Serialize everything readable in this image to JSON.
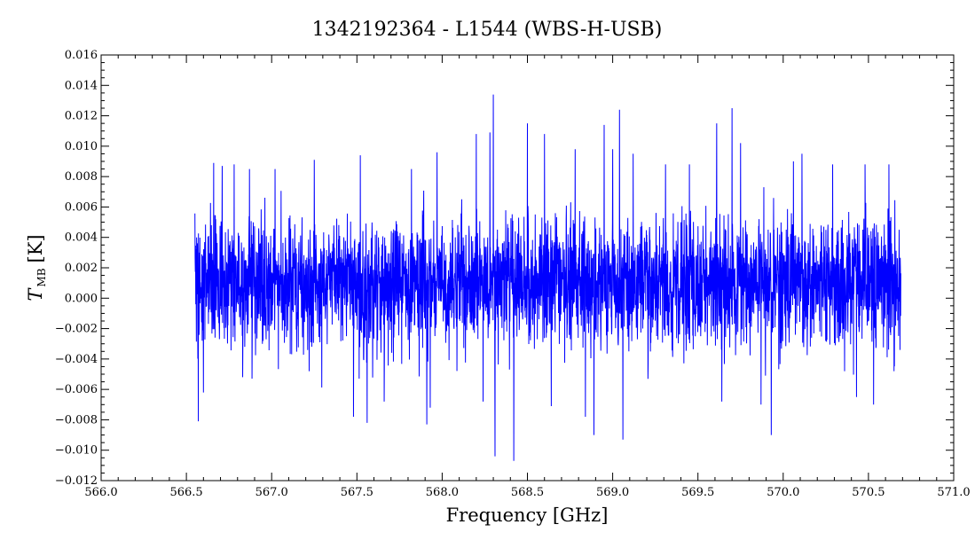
{
  "chart_data": {
    "type": "line",
    "title": "1342192364 - L1544 (WBS-H-USB)",
    "xlabel": "Frequency [GHz]",
    "ylabel_main": "T",
    "ylabel_sub": "MB",
    "ylabel_unit": "[K]",
    "xlim": [
      566.0,
      571.0
    ],
    "ylim": [
      -0.012,
      0.016
    ],
    "x_ticks": [
      "566.0",
      "566.5",
      "567.0",
      "567.5",
      "568.0",
      "568.5",
      "569.0",
      "569.5",
      "570.0",
      "570.5",
      "571.0"
    ],
    "y_ticks": [
      "−0.012",
      "−0.010",
      "−0.008",
      "−0.006",
      "−0.004",
      "−0.002",
      "0.000",
      "0.002",
      "0.004",
      "0.006",
      "0.008",
      "0.010",
      "0.012",
      "0.014",
      "0.016"
    ],
    "grid": false,
    "series": [
      {
        "color": "#0000ff",
        "x_range": [
          566.55,
          570.69
        ],
        "noise_rms": 0.0028,
        "baseline": 0.001,
        "values": [
          [
            566.56,
            0.004
          ],
          [
            566.57,
            -0.0081
          ],
          [
            566.6,
            -0.0062
          ],
          [
            566.66,
            0.0089
          ],
          [
            566.71,
            0.0087
          ],
          [
            566.78,
            0.0088
          ],
          [
            566.83,
            -0.0052
          ],
          [
            566.87,
            0.0085
          ],
          [
            567.02,
            0.0085
          ],
          [
            567.22,
            -0.0048
          ],
          [
            567.25,
            0.0091
          ],
          [
            567.48,
            -0.0078
          ],
          [
            567.52,
            0.0094
          ],
          [
            567.56,
            -0.0082
          ],
          [
            567.66,
            -0.0068
          ],
          [
            567.82,
            0.0085
          ],
          [
            567.91,
            -0.0083
          ],
          [
            567.93,
            -0.0072
          ],
          [
            567.97,
            0.0096
          ],
          [
            568.2,
            0.0108
          ],
          [
            568.24,
            -0.0068
          ],
          [
            568.28,
            0.0109
          ],
          [
            568.3,
            0.0134
          ],
          [
            568.31,
            -0.0104
          ],
          [
            568.42,
            -0.0107
          ],
          [
            568.5,
            0.0115
          ],
          [
            568.6,
            0.0108
          ],
          [
            568.64,
            -0.0071
          ],
          [
            568.78,
            0.0098
          ],
          [
            568.84,
            -0.0078
          ],
          [
            568.89,
            -0.009
          ],
          [
            568.95,
            0.0114
          ],
          [
            569.0,
            0.0098
          ],
          [
            569.04,
            0.0124
          ],
          [
            569.06,
            -0.0093
          ],
          [
            569.12,
            0.0095
          ],
          [
            569.31,
            0.0088
          ],
          [
            569.45,
            0.0088
          ],
          [
            569.61,
            0.0115
          ],
          [
            569.64,
            -0.0068
          ],
          [
            569.7,
            0.0125
          ],
          [
            569.75,
            0.0102
          ],
          [
            569.93,
            -0.009
          ],
          [
            569.87,
            -0.007
          ],
          [
            570.06,
            0.009
          ],
          [
            570.11,
            0.0095
          ],
          [
            570.29,
            0.0088
          ],
          [
            570.43,
            -0.0065
          ],
          [
            570.48,
            0.0088
          ],
          [
            570.53,
            -0.007
          ],
          [
            570.62,
            0.0088
          ],
          [
            570.65,
            -0.0048
          ],
          [
            570.68,
            0.0045
          ]
        ]
      }
    ]
  }
}
